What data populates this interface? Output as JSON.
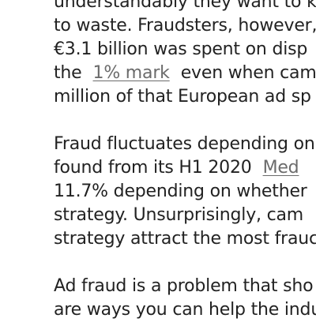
{
  "article": {
    "paragraph1": {
      "line1": "understandably they want to k",
      "line2": "to waste. Fraudsters, however,",
      "line3": "€3.1 billion was spent on disp",
      "line4": {
        "pre": "the",
        "link": "1% mark",
        "post": "even when cam"
      },
      "line5": "million of that European ad sp"
    },
    "paragraph2": {
      "line1": "Fraud fluctuates depending on",
      "line2": {
        "pre": "found from its H1 2020",
        "link": "Med"
      },
      "line3": "11.7% depending on whether",
      "line4": "strategy. Unsurprisingly, cam",
      "line5": "strategy attract the most frauc"
    },
    "paragraph3": {
      "line1": "Ad fraud is a problem that sho",
      "line2": "are ways you can help the indu"
    }
  }
}
